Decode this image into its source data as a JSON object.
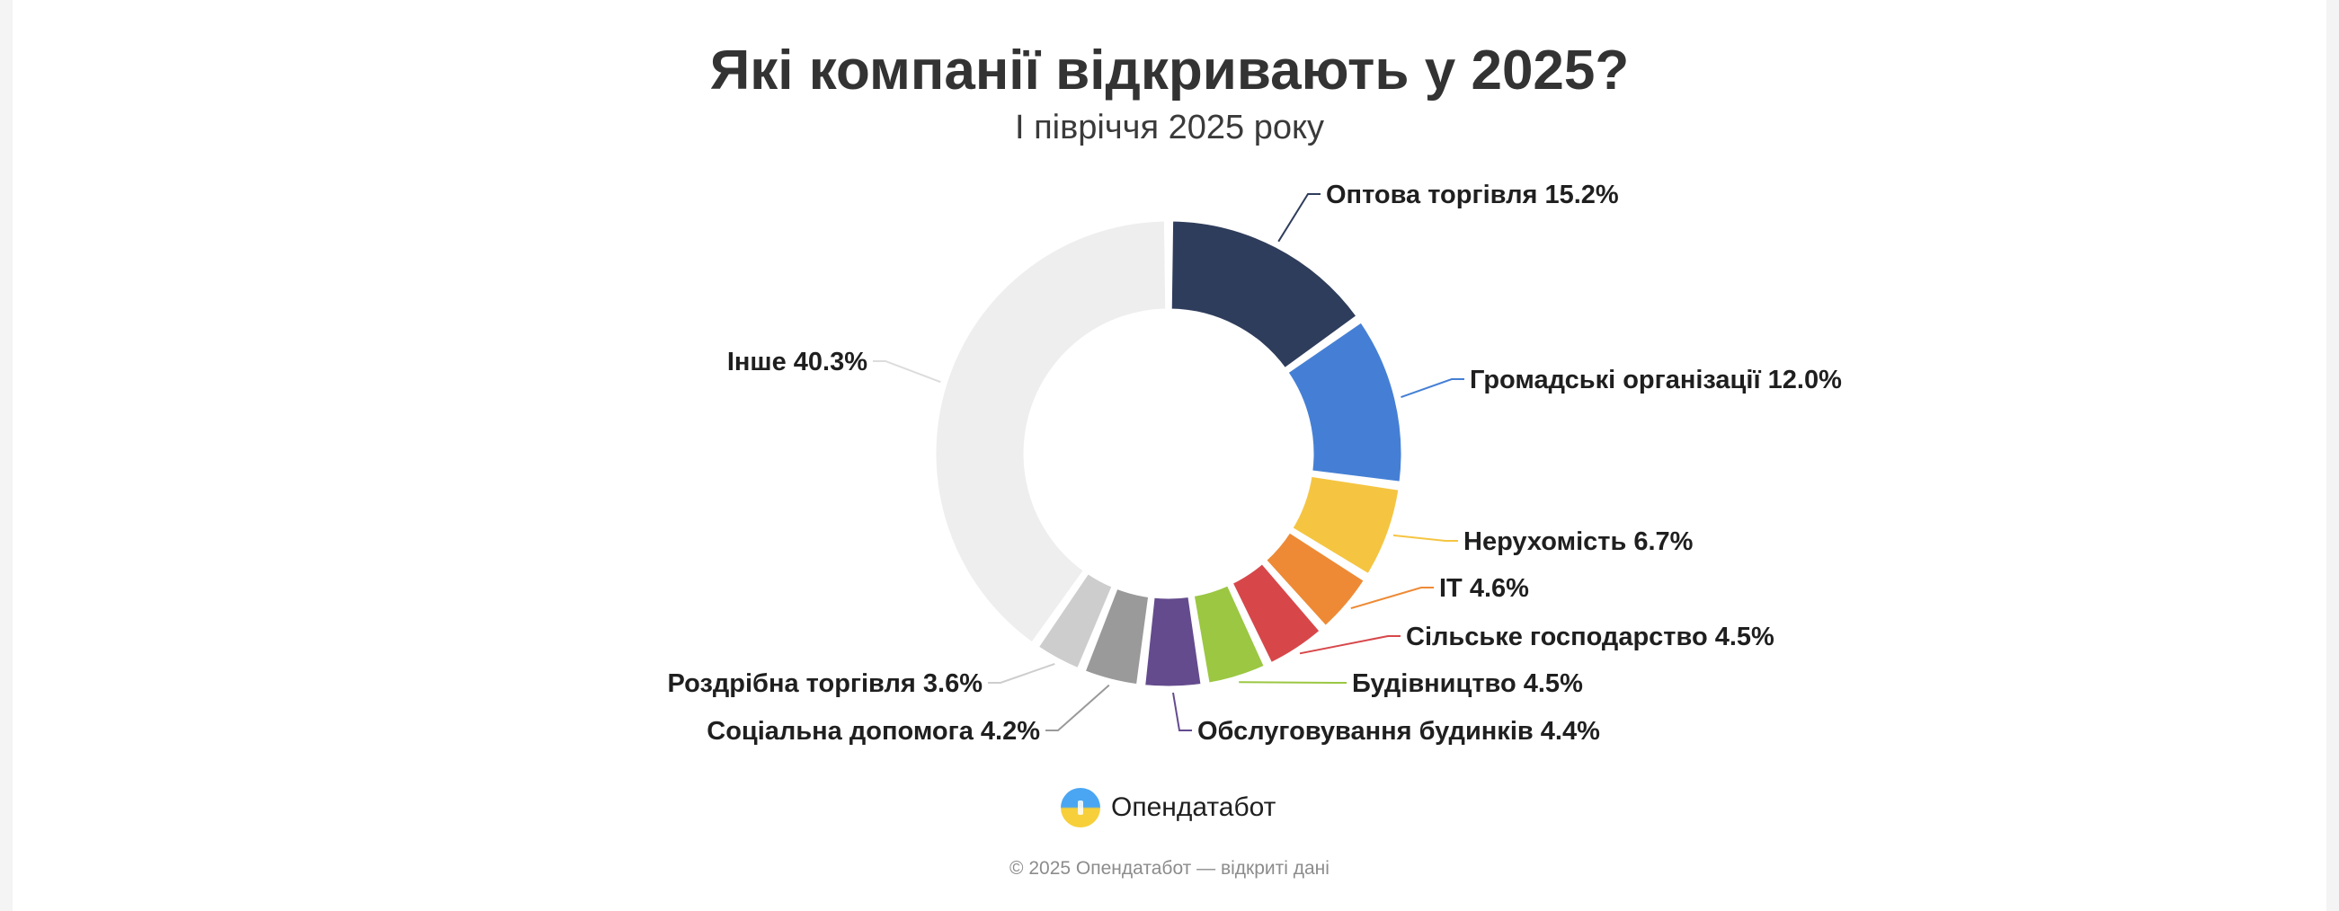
{
  "header": {
    "title": "Які компанії відкривають у 2025?",
    "subtitle": "І півріччя 2025 року"
  },
  "brand": {
    "name": "Опендатабот",
    "logo_icon": "opendatabot-logo-icon"
  },
  "footer": {
    "copyright": "© 2025 Опендатабот — відкриті дані"
  },
  "chart_data": {
    "type": "pie",
    "variant": "donut",
    "title": "Які компанії відкривають у 2025?",
    "subtitle": "І півріччя 2025 року",
    "unit": "%",
    "slices": [
      {
        "label": "Оптова торгівля",
        "value": 15.2,
        "display": "Оптова торгівля 15.2%",
        "color": "#2f3d5c"
      },
      {
        "label": "Громадські організації",
        "value": 12.0,
        "display": "Громадські організації 12.0%",
        "color": "#457fd5"
      },
      {
        "label": "Нерухомість",
        "value": 6.7,
        "display": "Нерухомість 6.7%",
        "color": "#f5c542"
      },
      {
        "label": "IT",
        "value": 4.6,
        "display": "IT 4.6%",
        "color": "#ee8a35"
      },
      {
        "label": "Сільське господарство",
        "value": 4.5,
        "display": "Сільське господарство 4.5%",
        "color": "#d7474a"
      },
      {
        "label": "Будівництво",
        "value": 4.5,
        "display": "Будівництво 4.5%",
        "color": "#9bc742"
      },
      {
        "label": "Обслуговування будинків",
        "value": 4.4,
        "display": "Обслуговування будинків 4.4%",
        "color": "#644b8e"
      },
      {
        "label": "Соціальна допомога",
        "value": 4.2,
        "display": "Соціальна допомога 4.2%",
        "color": "#9a9a9a"
      },
      {
        "label": "Роздрібна торгівля",
        "value": 3.6,
        "display": "Роздрібна торгівля 3.6%",
        "color": "#cdcdcd"
      },
      {
        "label": "Інше",
        "value": 40.3,
        "display": "Інше 40.3%",
        "color": "#eeeeee"
      }
    ]
  }
}
